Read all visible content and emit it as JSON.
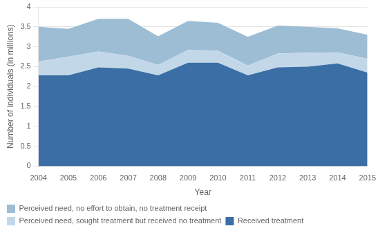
{
  "chart_data": {
    "type": "area",
    "stacked": true,
    "x": [
      2004,
      2005,
      2006,
      2007,
      2008,
      2009,
      2010,
      2011,
      2012,
      2013,
      2014,
      2015
    ],
    "series": [
      {
        "name": "Received treatment",
        "color": "#3a6ea5",
        "values": [
          2.28,
          2.28,
          2.48,
          2.45,
          2.28,
          2.6,
          2.6,
          2.28,
          2.48,
          2.5,
          2.58,
          2.35
        ]
      },
      {
        "name": "Perceived need, sought treatment but received no treatment",
        "color": "#c2d8e8",
        "values": [
          0.35,
          0.47,
          0.4,
          0.32,
          0.26,
          0.32,
          0.3,
          0.25,
          0.35,
          0.35,
          0.28,
          0.35
        ]
      },
      {
        "name": "Perceived need, no effort to obtain, no treatment receipt",
        "color": "#9dbdd4",
        "values": [
          0.87,
          0.7,
          0.82,
          0.93,
          0.72,
          0.73,
          0.7,
          0.72,
          0.7,
          0.65,
          0.6,
          0.6
        ]
      }
    ],
    "x_label": "Year",
    "y_label": "Number of individuals (in millions)",
    "xlim": [
      2004,
      2015
    ],
    "xticks": [
      2004,
      2005,
      2006,
      2007,
      2008,
      2009,
      2010,
      2011,
      2012,
      2013,
      2014,
      2015
    ],
    "ylim": [
      0,
      4
    ],
    "yticks": [
      0,
      0.5,
      1.0,
      1.5,
      2.0,
      2.5,
      3.0,
      3.5,
      4.0
    ],
    "grid": "y",
    "legend": "bottom"
  }
}
